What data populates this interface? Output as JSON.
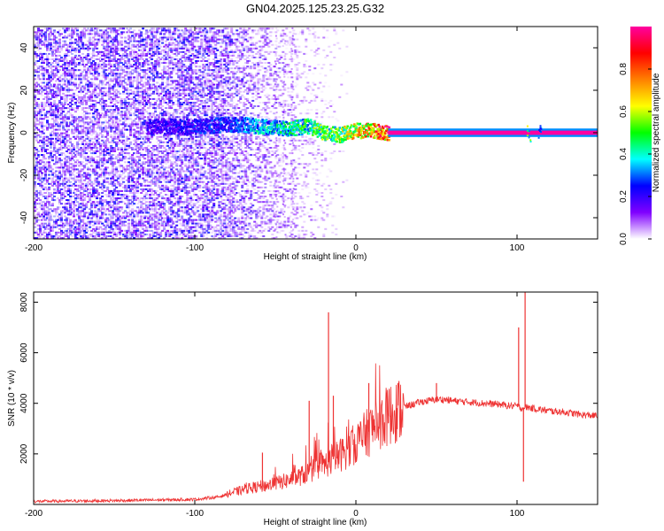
{
  "title": "GN04.2025.125.23.25.G32",
  "chart_data": [
    {
      "type": "heatmap",
      "xlabel": "Height of straight line (km)",
      "ylabel": "Frequency (Hz)",
      "xlim": [
        -200,
        150
      ],
      "ylim": [
        -50,
        50
      ],
      "x_ticks": [
        -200,
        -100,
        0,
        100
      ],
      "x_tick_labels": [
        "-200",
        "-100",
        "0",
        "100"
      ],
      "y_ticks": [
        -40,
        -20,
        0,
        20,
        40
      ],
      "y_tick_labels": [
        "-40",
        "-20",
        "0",
        "20",
        "40"
      ],
      "colorbar": {
        "label": "Normalized spectral amplitude",
        "range": [
          0,
          1
        ],
        "ticks": [
          0.0,
          0.2,
          0.4,
          0.6,
          0.8
        ],
        "tick_labels": [
          "0.0",
          "0.2",
          "0.4",
          "0.6",
          "0.8"
        ],
        "colormap": [
          "#ffffff",
          "#8000ff",
          "#0000ff",
          "#00ffff",
          "#00ff00",
          "#ffff00",
          "#ff8000",
          "#ff0000",
          "#ff00a0"
        ]
      },
      "features": [
        {
          "kind": "noise-region",
          "x_range": [
            -200,
            -30
          ],
          "y_range": [
            -50,
            50
          ],
          "amplitude": 0.15
        },
        {
          "kind": "faint-streaks",
          "x": [
            -50,
            -45,
            -40
          ],
          "y_range": [
            -50,
            50
          ],
          "amplitude": 0.05
        },
        {
          "kind": "ridge",
          "x": [
            -130,
            -100,
            -75,
            -60,
            -45,
            -30,
            -20,
            -10,
            0,
            10,
            20,
            30,
            150
          ],
          "y": [
            3,
            3,
            4,
            3,
            2,
            3,
            0,
            -1,
            1,
            1,
            0,
            0,
            0
          ],
          "amplitude": [
            0.2,
            0.25,
            0.3,
            0.4,
            0.45,
            0.5,
            0.55,
            0.6,
            0.7,
            0.85,
            0.95,
            1.0,
            1.0
          ]
        },
        {
          "kind": "blip",
          "x": 107,
          "y": 0,
          "amplitude": 0.6
        },
        {
          "kind": "blip",
          "x": 114,
          "y": 0,
          "amplitude": 0.4
        }
      ]
    },
    {
      "type": "line",
      "xlabel": "Height of straight line (km)",
      "ylabel": "SNR (10 * v/v)",
      "xlim": [
        -200,
        150
      ],
      "ylim": [
        0,
        8400
      ],
      "x_ticks": [
        -200,
        -100,
        0,
        100
      ],
      "x_tick_labels": [
        "-200",
        "-100",
        "0",
        "100"
      ],
      "y_ticks": [
        2000,
        4000,
        6000,
        8000
      ],
      "y_tick_labels": [
        "2000",
        "4000",
        "6000",
        "8000"
      ],
      "series": [
        {
          "color": "#ee3333",
          "x": [
            -200,
            -150,
            -100,
            -85,
            -75,
            -65,
            -55,
            -45,
            -35,
            -30,
            -25,
            -20,
            -15,
            -10,
            -5,
            0,
            5,
            10,
            15,
            20,
            25,
            30,
            35,
            40,
            45,
            50,
            55,
            60,
            70,
            80,
            90,
            95,
            100,
            103,
            106,
            110,
            120,
            130,
            140,
            150
          ],
          "y": [
            120,
            150,
            200,
            300,
            500,
            650,
            750,
            900,
            1100,
            1250,
            1400,
            1550,
            1750,
            1950,
            2150,
            2450,
            2700,
            3000,
            3250,
            3500,
            3700,
            3850,
            3950,
            4050,
            4100,
            4150,
            4150,
            4100,
            4050,
            4000,
            3950,
            3900,
            3900,
            3800,
            3850,
            3800,
            3700,
            3650,
            3550,
            3500
          ],
          "spikes": [
            {
              "x": -58,
              "y": 2050
            },
            {
              "x": -29,
              "y": 4100
            },
            {
              "x": -17,
              "y": 7600
            },
            {
              "x": -14,
              "y": 4300
            },
            {
              "x": 8,
              "y": 4800
            },
            {
              "x": 50,
              "y": 4800
            },
            {
              "x": 101,
              "y": 7000
            },
            {
              "x": 105,
              "y": 8400
            },
            {
              "x": 104,
              "y": 900
            }
          ]
        }
      ]
    }
  ]
}
